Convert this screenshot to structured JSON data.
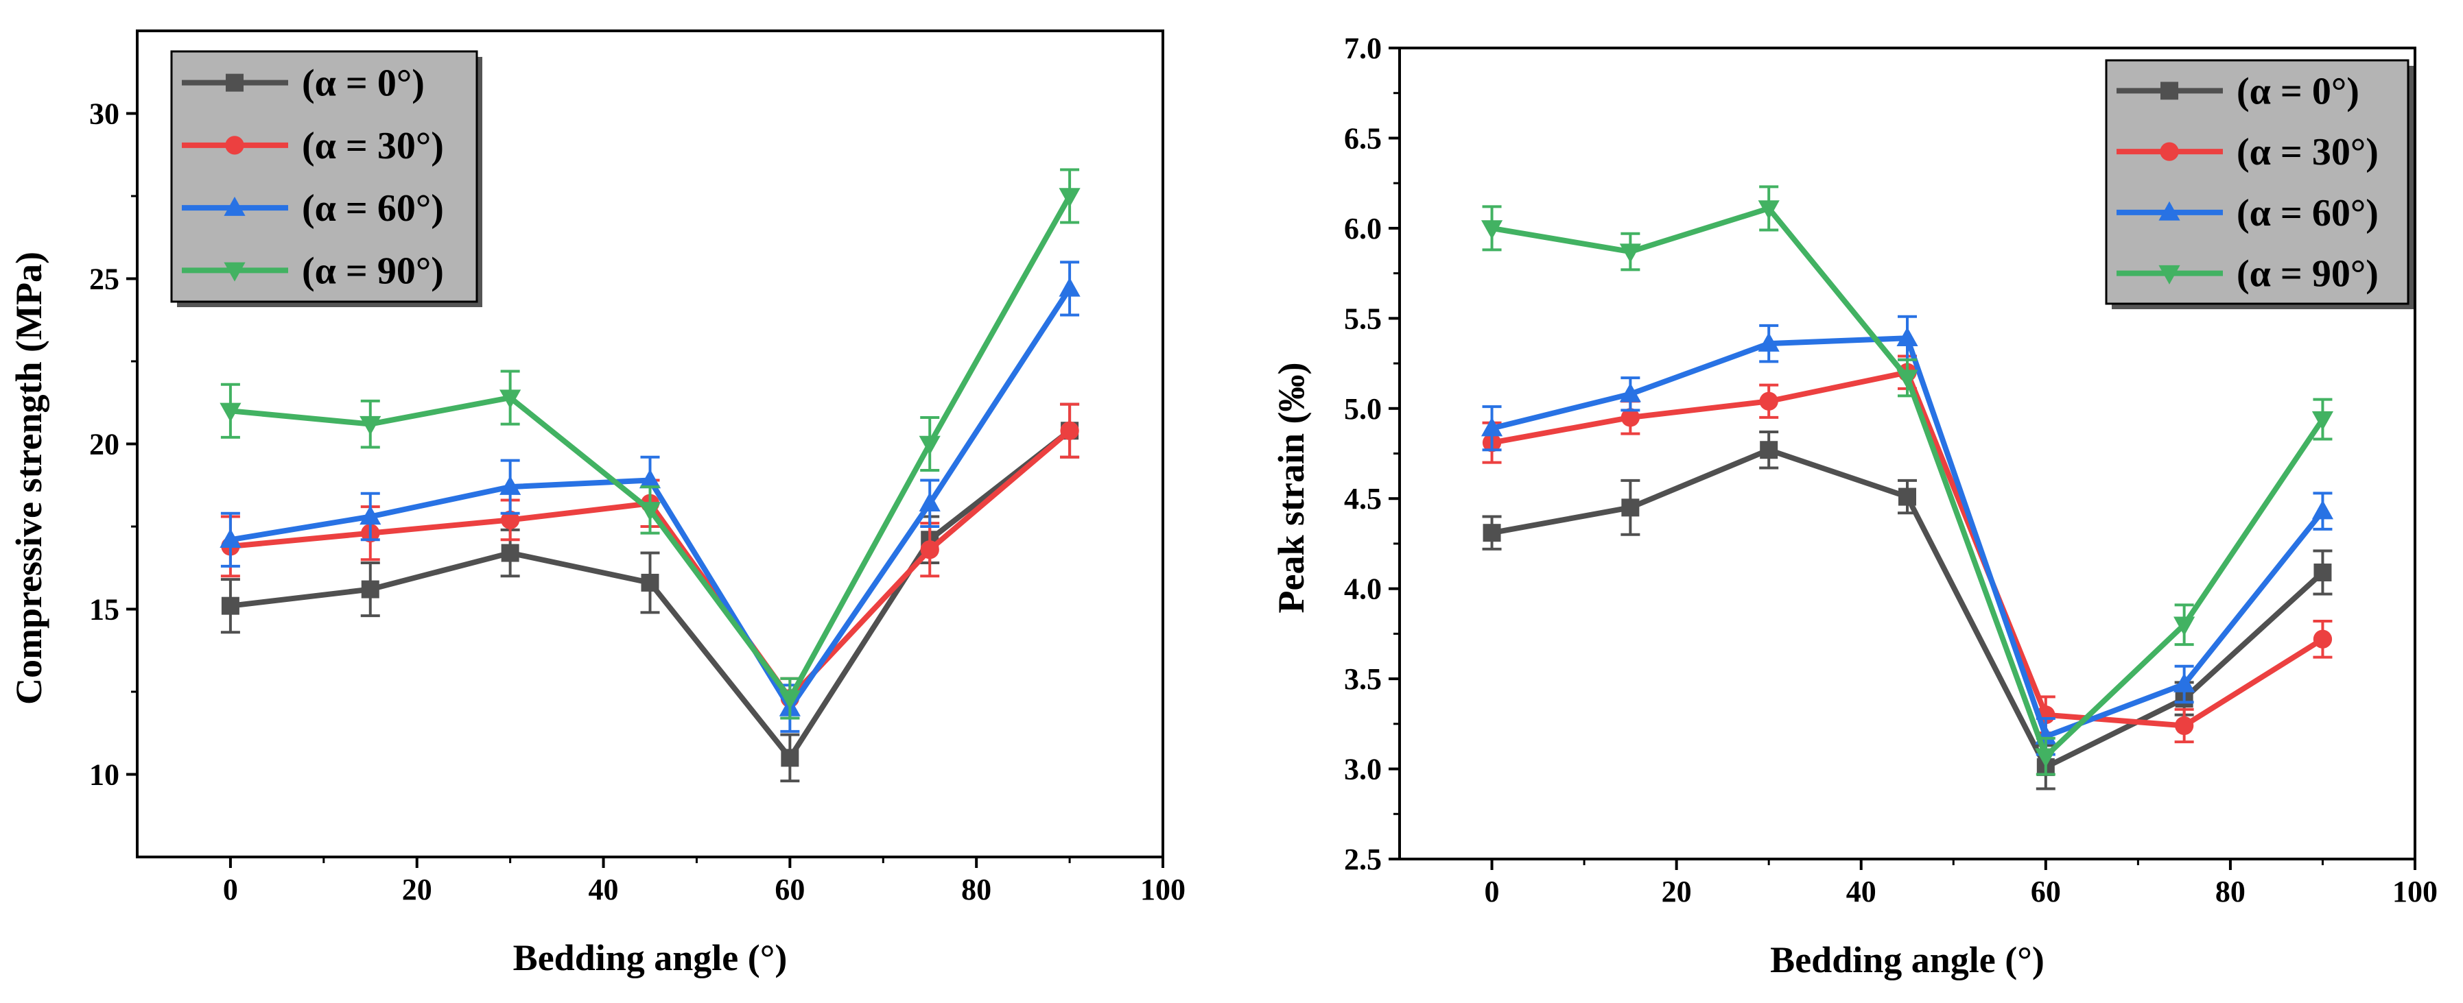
{
  "colors": {
    "alpha0": "#505050",
    "alpha30": "#ec4040",
    "alpha60": "#2872e4",
    "alpha90": "#42b262",
    "legend_bg": "#b4b4b4"
  },
  "chart_data": [
    {
      "type": "line",
      "xlabel": "Bedding angle (°)",
      "ylabel": "Compressive strength (MPa)",
      "xlim": [
        -10,
        100
      ],
      "ylim": [
        7.5,
        32.5
      ],
      "xticks": [
        0,
        20,
        40,
        60,
        80,
        100
      ],
      "yticks": [
        10,
        15,
        20,
        25,
        30
      ],
      "x": [
        0,
        15,
        30,
        45,
        60,
        75,
        90
      ],
      "legend_position": "top-left",
      "series": [
        {
          "name": "(α = 0°)",
          "marker": "square",
          "color_key": "alpha0",
          "values": [
            15.1,
            15.6,
            16.7,
            15.8,
            10.5,
            17.1,
            20.4
          ],
          "errors": [
            0.8,
            0.8,
            0.7,
            0.9,
            0.7,
            0.7,
            0.8
          ]
        },
        {
          "name": "(α = 30°)",
          "marker": "circle",
          "color_key": "alpha30",
          "values": [
            16.9,
            17.3,
            17.7,
            18.2,
            12.3,
            16.8,
            20.4
          ],
          "errors": [
            0.9,
            0.8,
            0.6,
            0.7,
            0.6,
            0.8,
            0.8
          ]
        },
        {
          "name": "(α = 60°)",
          "marker": "triangle-up",
          "color_key": "alpha60",
          "values": [
            17.1,
            17.8,
            18.7,
            18.9,
            12.0,
            18.2,
            24.7
          ],
          "errors": [
            0.8,
            0.7,
            0.8,
            0.7,
            0.7,
            0.7,
            0.8
          ]
        },
        {
          "name": "(α = 90°)",
          "marker": "triangle-down",
          "color_key": "alpha90",
          "values": [
            21.0,
            20.6,
            21.4,
            18.0,
            12.3,
            20.0,
            27.5
          ],
          "errors": [
            0.8,
            0.7,
            0.8,
            0.7,
            0.6,
            0.8,
            0.8
          ]
        }
      ]
    },
    {
      "type": "line",
      "xlabel": "Bedding angle (°)",
      "ylabel": "Peak strain (‰)",
      "xlim": [
        -10,
        100
      ],
      "ylim": [
        2.5,
        7.0
      ],
      "xticks": [
        0,
        20,
        40,
        60,
        80,
        100
      ],
      "yticks": [
        2.5,
        3.0,
        3.5,
        4.0,
        4.5,
        5.0,
        5.5,
        6.0,
        6.5,
        7.0
      ],
      "x": [
        0,
        15,
        30,
        45,
        60,
        75,
        90
      ],
      "legend_position": "top-right",
      "series": [
        {
          "name": "(α = 0°)",
          "marker": "square",
          "color_key": "alpha0",
          "values": [
            4.31,
            4.45,
            4.77,
            4.51,
            3.01,
            3.39,
            4.09
          ],
          "errors": [
            0.09,
            0.15,
            0.1,
            0.09,
            0.12,
            0.09,
            0.12
          ]
        },
        {
          "name": "(α = 30°)",
          "marker": "circle",
          "color_key": "alpha30",
          "values": [
            4.81,
            4.95,
            5.04,
            5.2,
            3.3,
            3.24,
            3.72
          ],
          "errors": [
            0.11,
            0.09,
            0.09,
            0.09,
            0.1,
            0.09,
            0.1
          ]
        },
        {
          "name": "(α = 60°)",
          "marker": "triangle-up",
          "color_key": "alpha60",
          "values": [
            4.89,
            5.08,
            5.36,
            5.39,
            3.18,
            3.47,
            4.43
          ],
          "errors": [
            0.12,
            0.09,
            0.1,
            0.12,
            0.1,
            0.1,
            0.1
          ]
        },
        {
          "name": "(α = 90°)",
          "marker": "triangle-down",
          "color_key": "alpha90",
          "values": [
            6.0,
            5.87,
            6.11,
            5.17,
            3.07,
            3.8,
            4.94
          ],
          "errors": [
            0.12,
            0.1,
            0.12,
            0.1,
            0.1,
            0.11,
            0.11
          ]
        }
      ]
    }
  ]
}
